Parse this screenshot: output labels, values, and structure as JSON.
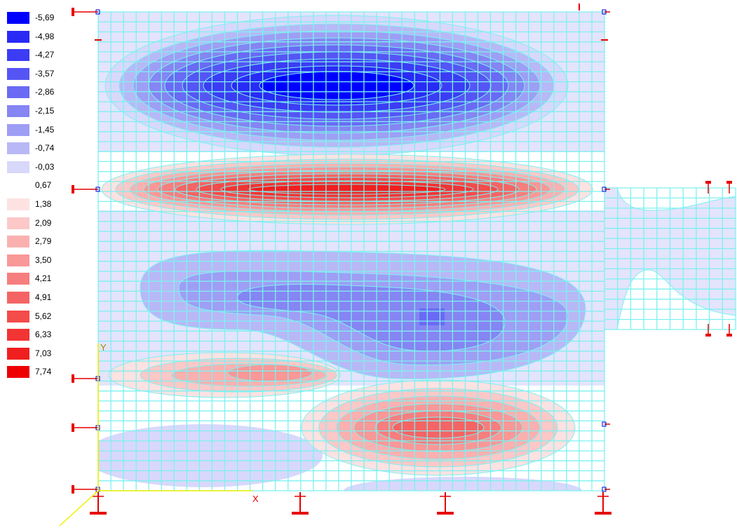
{
  "chart_data": {
    "type": "heatmap",
    "legend": {
      "values": [
        "-5,69",
        "-4,98",
        "-4,27",
        "-3,57",
        "-2,86",
        "-2,15",
        "-1,45",
        "-0,74",
        "-0,03",
        "0,67",
        "1,38",
        "2,09",
        "2,79",
        "3,50",
        "4,21",
        "4,91",
        "5,62",
        "6,33",
        "7,03",
        "7,74"
      ],
      "colors": [
        "#0000ff",
        "#2a2af7",
        "#3c3cf5",
        "#5555f5",
        "#6a6af5",
        "#8585f3",
        "#9e9ef5",
        "#b8b8f7",
        "#d8d8fb",
        "#ffffff",
        "#fde2e2",
        "#fcc8c8",
        "#fbb0b0",
        "#fa9797",
        "#f77e7e",
        "#f56464",
        "#f44b4b",
        "#f23434",
        "#f01f1f",
        "#ee0000"
      ]
    },
    "axes": {
      "x_label": "X",
      "y_label": "Y"
    },
    "colors": {
      "mesh": "#7ef0f0",
      "supports": "#e60000",
      "axis": "#f0f000"
    }
  }
}
